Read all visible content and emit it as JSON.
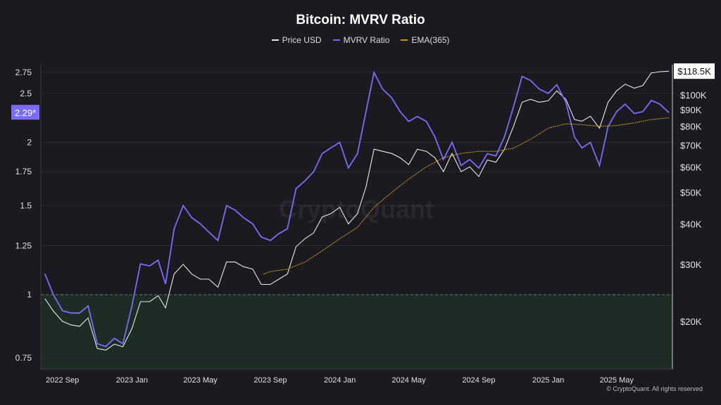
{
  "chart_data": {
    "type": "line",
    "title": "Bitcoin: MVRV Ratio",
    "legend_position": "top-center",
    "watermark": "CryptoQuant",
    "credit": "© CryptoQuant. All rights reserved",
    "x": [
      "2022-08-01",
      "2022-08-16",
      "2022-09-01",
      "2022-09-16",
      "2022-10-01",
      "2022-10-16",
      "2022-11-01",
      "2022-11-16",
      "2022-12-01",
      "2022-12-16",
      "2023-01-01",
      "2023-01-16",
      "2023-02-01",
      "2023-02-16",
      "2023-03-01",
      "2023-03-16",
      "2023-04-01",
      "2023-04-16",
      "2023-05-01",
      "2023-05-16",
      "2023-06-01",
      "2023-06-16",
      "2023-07-01",
      "2023-07-16",
      "2023-08-01",
      "2023-08-16",
      "2023-09-01",
      "2023-09-16",
      "2023-10-01",
      "2023-10-16",
      "2023-11-01",
      "2023-11-16",
      "2023-12-01",
      "2023-12-16",
      "2024-01-01",
      "2024-01-16",
      "2024-02-01",
      "2024-02-16",
      "2024-03-01",
      "2024-03-16",
      "2024-04-01",
      "2024-04-16",
      "2024-05-01",
      "2024-05-16",
      "2024-06-01",
      "2024-06-16",
      "2024-07-01",
      "2024-07-16",
      "2024-08-01",
      "2024-08-16",
      "2024-09-01",
      "2024-09-16",
      "2024-10-01",
      "2024-10-16",
      "2024-11-01",
      "2024-11-16",
      "2024-12-01",
      "2024-12-16",
      "2025-01-01",
      "2025-01-16",
      "2025-02-01",
      "2025-02-16",
      "2025-03-01",
      "2025-03-16",
      "2025-04-01",
      "2025-04-16",
      "2025-05-01",
      "2025-05-16",
      "2025-06-01",
      "2025-06-16",
      "2025-07-01",
      "2025-07-16",
      "2025-08-01"
    ],
    "x_ticks": [
      "2022 Sep",
      "2023 Jan",
      "2023 May",
      "2023 Sep",
      "2024 Jan",
      "2024 May",
      "2024 Sep",
      "2025 Jan",
      "2025 May"
    ],
    "x_tick_dates": [
      "2022-09-01",
      "2023-01-01",
      "2023-05-01",
      "2023-09-01",
      "2024-01-01",
      "2024-05-01",
      "2024-09-01",
      "2025-01-01",
      "2025-05-01"
    ],
    "y_left": {
      "scale": "log",
      "range": [
        0.72,
        2.9
      ],
      "ticks": [
        "0.75",
        "1",
        "1.25",
        "1.5",
        "1.75",
        "2",
        "2.5",
        "2.75"
      ],
      "tick_values": [
        0.75,
        1,
        1.25,
        1.5,
        1.75,
        2,
        2.5,
        2.75
      ],
      "current_label": "2.29*"
    },
    "y_right": {
      "scale": "log",
      "unit": "USD",
      "ticks": [
        "$20K",
        "$30K",
        "$40K",
        "$50K",
        "$60K",
        "$70K",
        "$80K",
        "$90K",
        "$100K"
      ],
      "tick_values": [
        20000,
        30000,
        40000,
        50000,
        60000,
        70000,
        80000,
        90000,
        100000
      ],
      "current_label": "$118.5K"
    },
    "threshold": {
      "value": 1,
      "zone": "below",
      "color": "#1f3a2a"
    },
    "series": [
      {
        "name": "Price USD",
        "axis": "right",
        "color": "#e8e8e8",
        "values": [
          23500,
          21500,
          20000,
          19500,
          19300,
          20500,
          16500,
          16300,
          17000,
          16700,
          19000,
          23000,
          23000,
          24000,
          22000,
          28000,
          30000,
          28000,
          27000,
          27000,
          25500,
          30500,
          30500,
          29500,
          29000,
          26000,
          26000,
          27000,
          28000,
          34000,
          36000,
          37500,
          42000,
          43000,
          45000,
          40000,
          43000,
          52000,
          68000,
          67000,
          66000,
          64000,
          61000,
          68000,
          67000,
          64000,
          58000,
          66000,
          58000,
          60000,
          56000,
          63000,
          62000,
          68000,
          80000,
          95000,
          97000,
          95000,
          96000,
          103000,
          97000,
          84000,
          83000,
          86000,
          79000,
          95000,
          103000,
          108000,
          105000,
          107000,
          117000,
          118000,
          118500
        ]
      },
      {
        "name": "MVRV Ratio",
        "axis": "left",
        "color": "#7b6cf6",
        "values": [
          1.1,
          1.0,
          0.93,
          0.92,
          0.92,
          0.95,
          0.8,
          0.79,
          0.82,
          0.8,
          0.95,
          1.15,
          1.14,
          1.17,
          1.05,
          1.35,
          1.5,
          1.42,
          1.38,
          1.33,
          1.28,
          1.5,
          1.47,
          1.42,
          1.38,
          1.3,
          1.28,
          1.32,
          1.35,
          1.62,
          1.68,
          1.75,
          1.9,
          1.95,
          2.0,
          1.78,
          1.9,
          2.3,
          2.75,
          2.55,
          2.45,
          2.3,
          2.2,
          2.25,
          2.2,
          2.05,
          1.85,
          2.0,
          1.8,
          1.85,
          1.78,
          1.9,
          1.88,
          2.05,
          2.35,
          2.7,
          2.65,
          2.55,
          2.5,
          2.6,
          2.4,
          2.05,
          1.95,
          2.0,
          1.8,
          2.15,
          2.3,
          2.38,
          2.28,
          2.3,
          2.42,
          2.38,
          2.29
        ]
      },
      {
        "name": "EMA(365)",
        "axis": "right",
        "color": "#c8951a",
        "x": [
          "2023-08-20",
          "2023-09-01",
          "2023-10-01",
          "2023-11-01",
          "2023-12-01",
          "2024-01-01",
          "2024-02-01",
          "2024-03-01",
          "2024-04-01",
          "2024-05-01",
          "2024-06-01",
          "2024-07-01",
          "2024-08-01",
          "2024-09-01",
          "2024-10-01",
          "2024-11-01",
          "2024-12-01",
          "2025-01-01",
          "2025-02-01",
          "2025-03-01",
          "2025-04-01",
          "2025-05-01",
          "2025-06-01",
          "2025-07-01",
          "2025-08-01"
        ],
        "values": [
          28000,
          28500,
          29000,
          30500,
          33000,
          36000,
          39000,
          45000,
          50000,
          55000,
          60000,
          64000,
          66000,
          67000,
          67000,
          68500,
          73000,
          79000,
          81500,
          81000,
          80000,
          80500,
          82000,
          84000,
          85000
        ]
      }
    ]
  }
}
